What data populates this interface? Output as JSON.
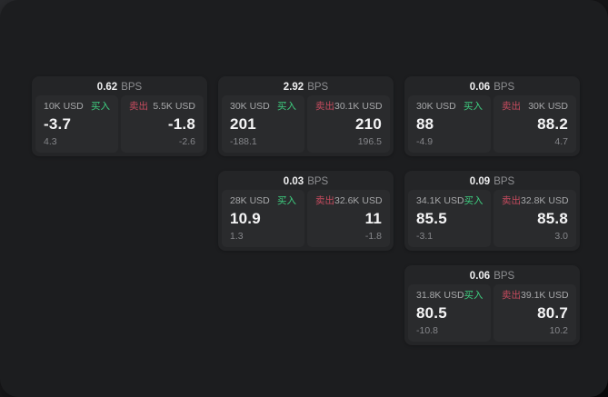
{
  "labels": {
    "buy": "买入",
    "sell": "卖出",
    "bps_unit": "BPS"
  },
  "colors": {
    "buy_green": "#3ecf80",
    "sell_red": "#c64b5e",
    "panel_bg": "#1c1d1f",
    "card_bg": "#242527",
    "cell_bg": "#2a2b2d"
  },
  "cards": [
    {
      "row": 1,
      "col": 1,
      "bps": "0.62",
      "buy": {
        "amount": "10K USD",
        "value": "-3.7",
        "sub": "4.3"
      },
      "sell": {
        "amount": "5.5K USD",
        "value": "-1.8",
        "sub": "-2.6"
      }
    },
    {
      "row": 1,
      "col": 2,
      "bps": "2.92",
      "buy": {
        "amount": "30K USD",
        "value": "201",
        "sub": "-188.1"
      },
      "sell": {
        "amount": "30.1K USD",
        "value": "210",
        "sub": "196.5"
      }
    },
    {
      "row": 1,
      "col": 3,
      "bps": "0.06",
      "buy": {
        "amount": "30K USD",
        "value": "88",
        "sub": "-4.9"
      },
      "sell": {
        "amount": "30K USD",
        "value": "88.2",
        "sub": "4.7"
      }
    },
    {
      "row": 2,
      "col": 2,
      "bps": "0.03",
      "buy": {
        "amount": "28K USD",
        "value": "10.9",
        "sub": "1.3"
      },
      "sell": {
        "amount": "32.6K USD",
        "value": "11",
        "sub": "-1.8"
      }
    },
    {
      "row": 2,
      "col": 3,
      "bps": "0.09",
      "buy": {
        "amount": "34.1K USD",
        "value": "85.5",
        "sub": "-3.1"
      },
      "sell": {
        "amount": "32.8K USD",
        "value": "85.8",
        "sub": "3.0"
      }
    },
    {
      "row": 3,
      "col": 3,
      "bps": "0.06",
      "buy": {
        "amount": "31.8K USD",
        "value": "80.5",
        "sub": "-10.8"
      },
      "sell": {
        "amount": "39.1K USD",
        "value": "80.7",
        "sub": "10.2"
      }
    }
  ]
}
